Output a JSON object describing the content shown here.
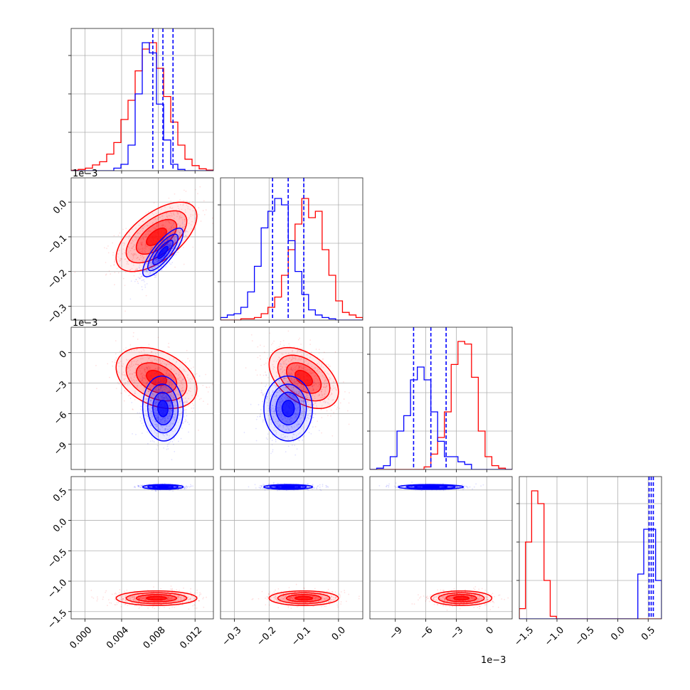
{
  "chart_data": {
    "type": "corner",
    "n_params": 4,
    "grid": true,
    "colors": {
      "series_a": "#ff0000",
      "series_b": "#0000ff"
    },
    "axes": [
      {
        "range": [
          -0.0015,
          0.014
        ],
        "ticks": [
          0.0,
          0.004,
          0.008,
          0.012
        ],
        "tick_labels": [
          "0.000",
          "0.004",
          "0.008",
          "0.012"
        ],
        "offset_text": ""
      },
      {
        "range": [
          -0.34,
          0.07
        ],
        "ticks": [
          -0.3,
          -0.2,
          -0.1,
          0.0
        ],
        "tick_labels": [
          "−0.3",
          "−0.2",
          "−0.1",
          "0.0"
        ],
        "offset_text": "1e−3"
      },
      {
        "range": [
          -0.0115,
          0.0025
        ],
        "ticks": [
          -0.009,
          -0.006,
          -0.003,
          0.0
        ],
        "tick_labels": [
          "−9",
          "−6",
          "−3",
          "0"
        ],
        "offset_text": "1e−3"
      },
      {
        "range": [
          -1.62,
          0.72
        ],
        "ticks": [
          -1.5,
          -1.0,
          -0.5,
          0.0,
          0.5
        ],
        "tick_labels": [
          "−1.5",
          "−1.0",
          "−0.5",
          "0.0",
          "0.5"
        ],
        "offset_text": ""
      }
    ],
    "series": [
      {
        "color": "#ff0000",
        "means": [
          0.0078,
          -0.1,
          -0.0025,
          -1.28
        ],
        "sigmas": [
          0.0022,
          0.05,
          0.0015,
          0.06
        ],
        "correlations": {
          "1_0": 0.6,
          "2_0": -0.35,
          "2_1": -0.45,
          "3_0": 0.0,
          "3_1": 0.0,
          "3_2": 0.0
        },
        "hist_1d": [
          [
            0.003,
            0.01,
            0.02,
            0.045,
            0.07,
            0.13,
            0.22,
            0.4,
            0.55,
            0.78,
            0.95,
            1.0,
            0.8,
            0.58,
            0.38,
            0.2,
            0.09,
            0.04,
            0.015,
            0.005
          ],
          [
            0.0,
            0.0,
            0.0,
            0.01,
            0.01,
            0.02,
            0.05,
            0.1,
            0.18,
            0.35,
            0.55,
            0.75,
            0.95,
            0.8,
            0.85,
            0.55,
            0.35,
            0.15,
            0.06,
            0.04,
            0.02
          ],
          [
            0.0,
            0.0,
            0.0,
            0.0,
            0.0,
            0.0,
            0.0,
            0.0,
            0.02,
            0.12,
            0.25,
            0.45,
            0.82,
            1.0,
            0.98,
            0.72,
            0.3,
            0.1,
            0.03,
            0.01,
            0.0
          ],
          [
            0.08,
            0.6,
            1.0,
            0.9,
            0.3,
            0.02,
            0.0,
            0.0,
            0.0,
            0.0,
            0.0,
            0.0,
            0.0,
            0.0,
            0.0,
            0.0,
            0.0,
            0.0,
            0.0,
            0.0,
            0.0,
            0.0,
            0.0
          ]
        ]
      },
      {
        "color": "#0000ff",
        "means": [
          0.0085,
          -0.145,
          -0.0055,
          0.55
        ],
        "sigmas": [
          0.0011,
          0.035,
          0.0016,
          0.02
        ],
        "correlations": {
          "1_0": 0.8,
          "2_0": -0.05,
          "2_1": 0.0,
          "3_0": 0.0,
          "3_1": 0.0,
          "3_2": 0.0
        },
        "quantiles": [
          [
            0.0074,
            0.0085,
            0.0096
          ],
          [
            -0.19,
            -0.145,
            -0.1
          ],
          [
            -0.0072,
            -0.0055,
            -0.004
          ],
          [
            0.515,
            0.55,
            0.585
          ]
        ],
        "hist_1d": [
          [
            0.0,
            0.0,
            0.0,
            0.0,
            0.0,
            0.0,
            0.02,
            0.05,
            0.2,
            0.6,
            1.0,
            0.92,
            0.52,
            0.24,
            0.05,
            0.01,
            0.0,
            0.0,
            0.0,
            0.0
          ],
          [
            0.02,
            0.04,
            0.05,
            0.1,
            0.22,
            0.42,
            0.72,
            0.85,
            0.95,
            0.9,
            0.62,
            0.38,
            0.2,
            0.08,
            0.04,
            0.02,
            0.01,
            0.0,
            0.0,
            0.0,
            0.0
          ],
          [
            0.0,
            0.01,
            0.03,
            0.1,
            0.3,
            0.42,
            0.7,
            0.8,
            0.7,
            0.45,
            0.22,
            0.1,
            0.1,
            0.06,
            0.04,
            0.0,
            0.0,
            0.0,
            0.0,
            0.0,
            0.0
          ],
          [
            0.0,
            0.0,
            0.0,
            0.0,
            0.0,
            0.0,
            0.0,
            0.0,
            0.0,
            0.0,
            0.0,
            0.0,
            0.0,
            0.0,
            0.0,
            0.0,
            0.0,
            0.0,
            0.0,
            0.0,
            0.35,
            0.7,
            0.7,
            0.3
          ]
        ]
      }
    ]
  }
}
